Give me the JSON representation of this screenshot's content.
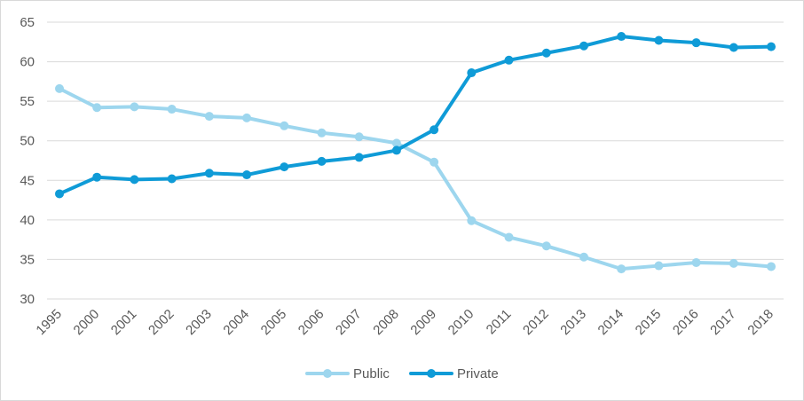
{
  "chart_data": {
    "type": "line",
    "title": "",
    "xlabel": "",
    "ylabel": "",
    "ylim": [
      30,
      65
    ],
    "yticks": [
      30,
      35,
      40,
      45,
      50,
      55,
      60,
      65
    ],
    "grid": "horizontal",
    "legend_position": "bottom-center",
    "categories": [
      "1995",
      "2000",
      "2001",
      "2002",
      "2003",
      "2004",
      "2005",
      "2006",
      "2007",
      "2008",
      "2009",
      "2010",
      "2011",
      "2012",
      "2013",
      "2014",
      "2015",
      "2016",
      "2017",
      "2018"
    ],
    "series": [
      {
        "name": "Public",
        "color": "#9dd6ee",
        "values": [
          56.6,
          54.2,
          54.3,
          54.0,
          53.1,
          52.9,
          51.9,
          51.0,
          50.5,
          49.7,
          47.3,
          39.9,
          37.8,
          36.7,
          35.3,
          33.8,
          34.2,
          34.6,
          34.5,
          34.1
        ]
      },
      {
        "name": "Private",
        "color": "#0f9bd7",
        "values": [
          43.3,
          45.4,
          45.1,
          45.2,
          45.9,
          45.7,
          46.7,
          47.4,
          47.9,
          48.8,
          51.4,
          58.6,
          60.2,
          61.1,
          62.0,
          63.2,
          62.7,
          62.4,
          61.8,
          61.9
        ]
      }
    ]
  }
}
